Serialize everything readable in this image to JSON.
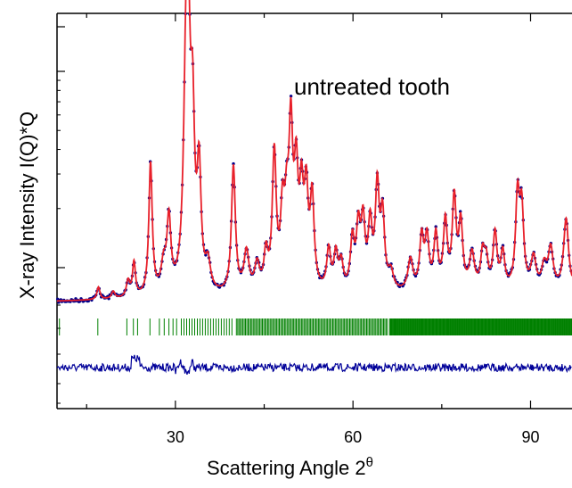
{
  "chart_data": {
    "type": "line",
    "annotation": "untreated tooth",
    "xlabel": "Scattering Angle 2",
    "xlabel_superscript": "θ",
    "ylabel": "X-ray Intensity I(Q)*Q",
    "xlim": [
      10,
      97
    ],
    "x_ticks": [
      30,
      60,
      90
    ],
    "x_tick_labels": [
      "30",
      "60",
      "90"
    ],
    "y_log_scale": true,
    "grid": false,
    "colors": {
      "observed": "#00008b",
      "calculated": "#e8202a",
      "reflections": "#008000",
      "difference": "#000099",
      "axis": "#000000"
    },
    "series": [
      {
        "role": "observed",
        "marker": "dots"
      },
      {
        "role": "calculated"
      },
      {
        "role": "reflection-markers"
      },
      {
        "role": "difference"
      }
    ]
  }
}
